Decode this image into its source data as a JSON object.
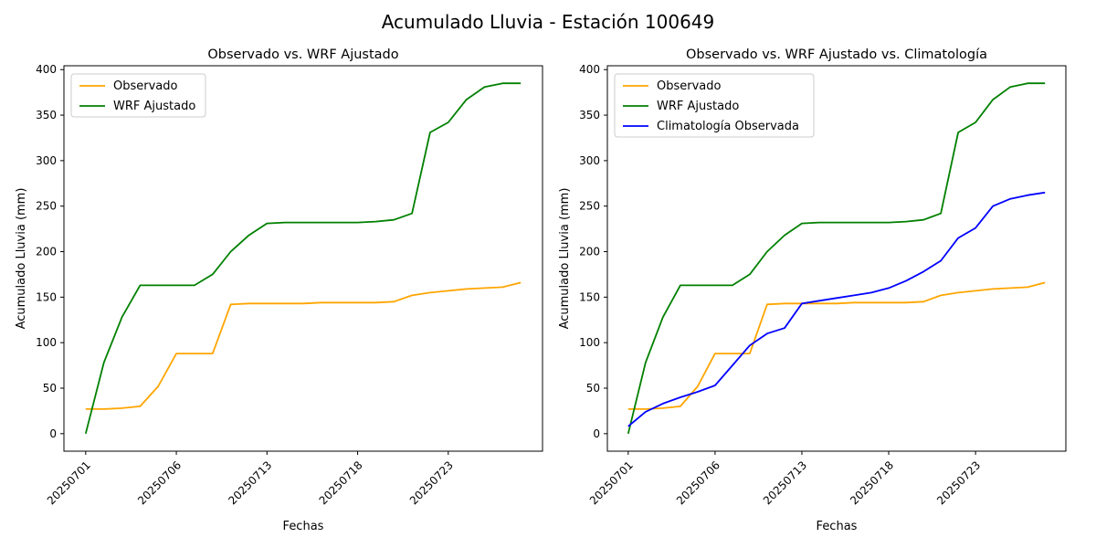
{
  "figure": {
    "title": "Acumulado Lluvia - Estación 100649",
    "background_color": "#ffffff",
    "text_color": "#000000"
  },
  "chart_data": [
    {
      "type": "line",
      "title": "Observado vs. WRF Ajustado",
      "xlabel": "Fechas",
      "ylabel": "Acumulado Lluvia (mm)",
      "x_tick_labels": [
        "20250701",
        "20250706",
        "20250713",
        "20250718",
        "20250723"
      ],
      "x_tick_positions": [
        0,
        5,
        10,
        15,
        20
      ],
      "n_points": 25,
      "yticks": [
        0,
        50,
        100,
        150,
        200,
        250,
        300,
        350,
        400
      ],
      "ylim": [
        -19.25,
        404.25
      ],
      "grid": false,
      "legend_position": "upper-left",
      "series": [
        {
          "name": "Observado",
          "color": "#FFA500",
          "values": [
            27,
            27,
            28,
            30,
            52,
            88,
            88,
            88,
            142,
            143,
            143,
            143,
            143,
            144,
            144,
            144,
            144,
            145,
            152,
            155,
            157,
            159,
            160,
            161,
            166
          ]
        },
        {
          "name": "WRF Ajustado",
          "color": "#008000",
          "values": [
            0,
            78,
            128,
            163,
            163,
            163,
            163,
            175,
            200,
            218,
            231,
            232,
            232,
            232,
            232,
            232,
            233,
            235,
            242,
            331,
            342,
            367,
            381,
            385,
            385
          ]
        }
      ]
    },
    {
      "type": "line",
      "title": "Observado vs. WRF Ajustado vs. Climatología",
      "xlabel": "Fechas",
      "ylabel": "Acumulado Lluvia (mm)",
      "x_tick_labels": [
        "20250701",
        "20250706",
        "20250713",
        "20250718",
        "20250723"
      ],
      "x_tick_positions": [
        0,
        5,
        10,
        15,
        20
      ],
      "n_points": 25,
      "yticks": [
        0,
        50,
        100,
        150,
        200,
        250,
        300,
        350,
        400
      ],
      "ylim": [
        -19.25,
        404.25
      ],
      "grid": false,
      "legend_position": "upper-left",
      "series": [
        {
          "name": "Observado",
          "color": "#FFA500",
          "values": [
            27,
            27,
            28,
            30,
            52,
            88,
            88,
            88,
            142,
            143,
            143,
            143,
            143,
            144,
            144,
            144,
            144,
            145,
            152,
            155,
            157,
            159,
            160,
            161,
            166
          ]
        },
        {
          "name": "WRF Ajustado",
          "color": "#008000",
          "values": [
            0,
            78,
            128,
            163,
            163,
            163,
            163,
            175,
            200,
            218,
            231,
            232,
            232,
            232,
            232,
            232,
            233,
            235,
            242,
            331,
            342,
            367,
            381,
            385,
            385
          ]
        },
        {
          "name": "Climatología Observada",
          "color": "#0000FF",
          "values": [
            8,
            24,
            33,
            40,
            46,
            53,
            75,
            97,
            110,
            116,
            143,
            146,
            149,
            152,
            155,
            160,
            168,
            178,
            190,
            215,
            226,
            250,
            258,
            262,
            265
          ]
        }
      ]
    }
  ]
}
